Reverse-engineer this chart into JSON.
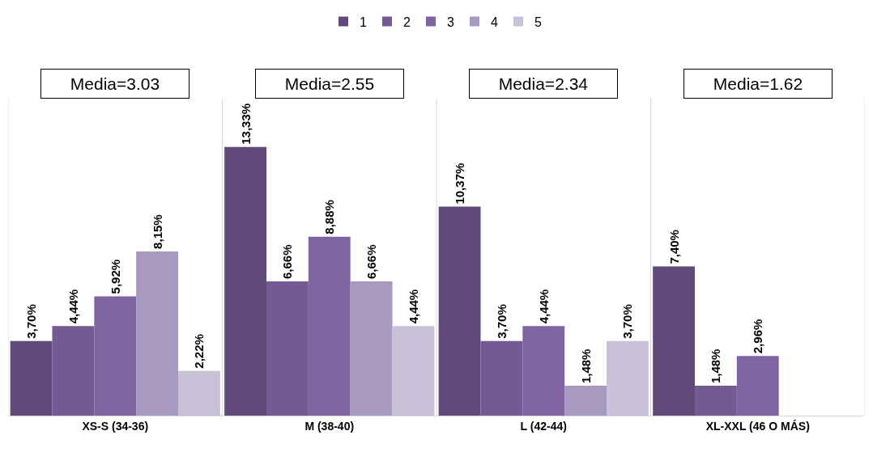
{
  "chart_data": {
    "type": "bar",
    "categories": [
      "XS-S (34-36)",
      "M (38-40)",
      "L (42-44)",
      "XL-XXL (46 O MÁS)"
    ],
    "series": [
      {
        "name": "1",
        "color": "#5f4a7a",
        "values": [
          3.7,
          13.33,
          10.37,
          7.4
        ],
        "value_labels": [
          "3,70%",
          "13,33%",
          "10,37%",
          "7,40%"
        ]
      },
      {
        "name": "2",
        "color": "#735a93",
        "values": [
          4.44,
          6.66,
          3.7,
          1.48
        ],
        "value_labels": [
          "4,44%",
          "6,66%",
          "3,70%",
          "1,48%"
        ]
      },
      {
        "name": "3",
        "color": "#8064a2",
        "values": [
          5.92,
          8.88,
          4.44,
          2.96
        ],
        "value_labels": [
          "5,92%",
          "8,88%",
          "4,44%",
          "2,96%"
        ]
      },
      {
        "name": "4",
        "color": "#a899c1",
        "values": [
          8.15,
          6.66,
          1.48,
          null
        ],
        "value_labels": [
          "8,15%",
          "6,66%",
          "1,48%",
          null
        ]
      },
      {
        "name": "5",
        "color": "#c8c1d8",
        "values": [
          2.22,
          4.44,
          3.7,
          null
        ],
        "value_labels": [
          "2,22%",
          "4,44%",
          "3,70%",
          null
        ]
      }
    ],
    "annotations": [
      "Media=3.03",
      "Media=2.55",
      "Media=2.34",
      "Media=1.62"
    ],
    "legend": "top"
  }
}
